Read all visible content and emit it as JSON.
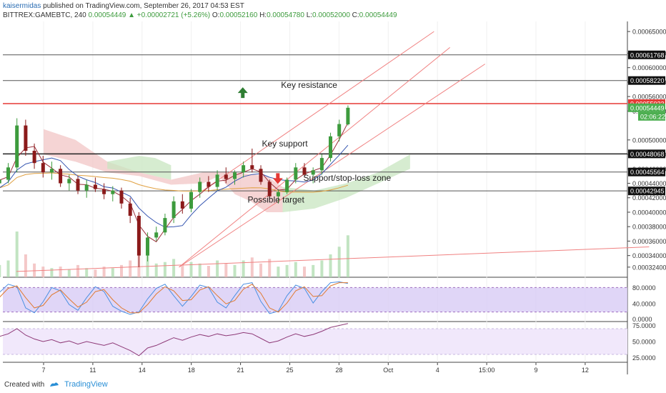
{
  "header": {
    "author": "kaisermidas",
    "published": "published on TradingView.com, September 26, 2017 04:53 EST",
    "symbol": "BITTREX:GAMEBTC, 240",
    "last": "0.00054449",
    "change": "+0.00002721 (+5.26%)",
    "o_label": "O:",
    "o": "0.00052160",
    "h_label": "H:",
    "h": "0.00054780",
    "l_label": "L:",
    "l": "0.00052000",
    "c_label": "C:",
    "c": "0.00054449"
  },
  "footer": {
    "created_with": "Created with",
    "brand": "TradingView"
  },
  "colors": {
    "up": "#3d9b3d",
    "down": "#8b1a1a",
    "resistance_line": "#e53935",
    "trend_line": "#f08080",
    "cloud_red": "#f2c6c6",
    "cloud_green": "#c8e6c0",
    "stoch_band": "#d8ccf5",
    "rsi_band": "#f1e8fb",
    "price_tag_last": "#4caf50",
    "price_tag_red": "#e53935"
  },
  "chart_data": {
    "type": "candlestick",
    "symbol": "BITTREX:GAMEBTC",
    "interval": "240",
    "y_axis_ticks": [
      "0.00065000",
      "0.00062000",
      "0.00060000",
      "0.00058000",
      "0.00056000",
      "0.00054000",
      "0.00050000",
      "0.00048000",
      "0.00046000",
      "0.00044000",
      "0.00042000",
      "0.00040000",
      "0.00038000",
      "0.00036000",
      "0.00034000",
      "0.00032400"
    ],
    "ylim": [
      0.00031,
      0.00066
    ],
    "x_axis_ticks": [
      "7",
      "11",
      "14",
      "18",
      "21",
      "25",
      "28",
      "Oct",
      "4",
      "15:00",
      "9",
      "12"
    ],
    "price_tags": [
      {
        "value": 0.00061768,
        "label": "0.00061768",
        "style": "dark"
      },
      {
        "value": 0.0005822,
        "label": "0.00058220",
        "style": "dark"
      },
      {
        "value": 0.00055023,
        "label": "0.00055023",
        "style": "red"
      },
      {
        "value": 0.00054449,
        "label": "0.00054449",
        "style": "green"
      },
      {
        "value": 0.00048068,
        "label": "0.00048068",
        "style": "dark"
      },
      {
        "value": 0.00045564,
        "label": "0.00045564",
        "style": "dark"
      },
      {
        "value": 0.00042945,
        "label": "0.00042945",
        "style": "dark"
      }
    ],
    "countdown": "02:06:22",
    "horizontal_levels": [
      {
        "value": 0.00061768,
        "color": "#555555",
        "width": 1
      },
      {
        "value": 0.0005822,
        "color": "#555555",
        "width": 1
      },
      {
        "value": 0.00055023,
        "color": "#e53935",
        "width": 1.5
      },
      {
        "value": 0.00048068,
        "color": "#222222",
        "width": 1.5
      },
      {
        "value": 0.00045564,
        "color": "#555555",
        "width": 1
      },
      {
        "value": 0.00042945,
        "color": "#555555",
        "width": 1
      }
    ],
    "annotations": [
      {
        "text": "Key resistance",
        "value": 0.000572,
        "anchor_day": 21.9
      },
      {
        "text": "Key support",
        "value": 0.000491,
        "anchor_day": 20.7
      },
      {
        "text": "Support/stop-loss zone",
        "value": 0.0004435,
        "anchor_day": 23.3
      },
      {
        "text": "Possible target",
        "value": 0.0004135,
        "anchor_day": 19.8
      }
    ],
    "arrows": [
      {
        "direction": "up",
        "color": "#2e7d32",
        "day": 19.5,
        "value": 0.000565
      },
      {
        "direction": "down",
        "color": "#e53935",
        "day": 21.7,
        "value": 0.000447
      }
    ],
    "candles": [
      {
        "t": 0,
        "o": 0.000425,
        "h": 0.000432,
        "l": 0.0004,
        "c": 0.000412
      },
      {
        "t": 1,
        "o": 0.000412,
        "h": 0.00043,
        "l": 0.000405,
        "c": 0.000422
      },
      {
        "t": 2,
        "o": 0.000422,
        "h": 0.00044,
        "l": 0.000415,
        "c": 0.000435
      },
      {
        "t": 3,
        "o": 0.000435,
        "h": 0.000455,
        "l": 0.000428,
        "c": 0.000448
      },
      {
        "t": 4,
        "o": 0.000448,
        "h": 0.00046,
        "l": 0.000436,
        "c": 0.00044
      },
      {
        "t": 5,
        "o": 0.00044,
        "h": 0.000452,
        "l": 0.00043,
        "c": 0.000445
      },
      {
        "t": 6,
        "o": 0.000445,
        "h": 0.000468,
        "l": 0.00044,
        "c": 0.000462
      },
      {
        "t": 7,
        "o": 0.000462,
        "h": 0.00053,
        "l": 0.000455,
        "c": 0.00052
      },
      {
        "t": 8,
        "o": 0.00052,
        "h": 0.000528,
        "l": 0.000478,
        "c": 0.000485
      },
      {
        "t": 9,
        "o": 0.000485,
        "h": 0.000495,
        "l": 0.00046,
        "c": 0.000468
      },
      {
        "t": 10,
        "o": 0.000468,
        "h": 0.000478,
        "l": 0.000448,
        "c": 0.000455
      },
      {
        "t": 11,
        "o": 0.000455,
        "h": 0.00047,
        "l": 0.000445,
        "c": 0.00046
      },
      {
        "t": 12,
        "o": 0.00046,
        "h": 0.000465,
        "l": 0.000435,
        "c": 0.00044
      },
      {
        "t": 13,
        "o": 0.00044,
        "h": 0.000452,
        "l": 0.00043,
        "c": 0.000446
      },
      {
        "t": 14,
        "o": 0.000446,
        "h": 0.00045,
        "l": 0.000425,
        "c": 0.00043
      },
      {
        "t": 15,
        "o": 0.00043,
        "h": 0.000445,
        "l": 0.00042,
        "c": 0.000438
      },
      {
        "t": 16,
        "o": 0.000438,
        "h": 0.000448,
        "l": 0.000428,
        "c": 0.000432
      },
      {
        "t": 17,
        "o": 0.000432,
        "h": 0.00044,
        "l": 0.000418,
        "c": 0.000425
      },
      {
        "t": 18,
        "o": 0.000425,
        "h": 0.000436,
        "l": 0.000415,
        "c": 0.00043
      },
      {
        "t": 19,
        "o": 0.00043,
        "h": 0.000434,
        "l": 0.000405,
        "c": 0.000412
      },
      {
        "t": 20,
        "o": 0.000412,
        "h": 0.00042,
        "l": 0.000385,
        "c": 0.000395
      },
      {
        "t": 21,
        "o": 0.000395,
        "h": 0.0004,
        "l": 0.000324,
        "c": 0.00034
      },
      {
        "t": 22,
        "o": 0.00034,
        "h": 0.000372,
        "l": 0.000332,
        "c": 0.000365
      },
      {
        "t": 23,
        "o": 0.000365,
        "h": 0.00038,
        "l": 0.00036,
        "c": 0.000372
      },
      {
        "t": 24,
        "o": 0.000372,
        "h": 0.000398,
        "l": 0.000368,
        "c": 0.000392
      },
      {
        "t": 25,
        "o": 0.000392,
        "h": 0.000422,
        "l": 0.000385,
        "c": 0.000415
      },
      {
        "t": 26,
        "o": 0.000415,
        "h": 0.000425,
        "l": 0.000398,
        "c": 0.000405
      },
      {
        "t": 27,
        "o": 0.000405,
        "h": 0.000432,
        "l": 0.0004,
        "c": 0.000428
      },
      {
        "t": 28,
        "o": 0.000428,
        "h": 0.000448,
        "l": 0.00042,
        "c": 0.000442
      },
      {
        "t": 29,
        "o": 0.000442,
        "h": 0.00045,
        "l": 0.000428,
        "c": 0.000435
      },
      {
        "t": 30,
        "o": 0.000435,
        "h": 0.000458,
        "l": 0.00043,
        "c": 0.000452
      },
      {
        "t": 31,
        "o": 0.000452,
        "h": 0.000462,
        "l": 0.00044,
        "c": 0.000446
      },
      {
        "t": 32,
        "o": 0.000446,
        "h": 0.000458,
        "l": 0.000438,
        "c": 0.000455
      },
      {
        "t": 33,
        "o": 0.000455,
        "h": 0.00047,
        "l": 0.000448,
        "c": 0.000465
      },
      {
        "t": 34,
        "o": 0.000465,
        "h": 0.000488,
        "l": 0.000455,
        "c": 0.00046
      },
      {
        "t": 35,
        "o": 0.00046,
        "h": 0.000465,
        "l": 0.000438,
        "c": 0.000442
      },
      {
        "t": 36,
        "o": 0.000442,
        "h": 0.000445,
        "l": 0.000418,
        "c": 0.000422
      },
      {
        "t": 37,
        "o": 0.000422,
        "h": 0.000432,
        "l": 0.000412,
        "c": 0.000428
      },
      {
        "t": 38,
        "o": 0.000428,
        "h": 0.000448,
        "l": 0.000425,
        "c": 0.000445
      },
      {
        "t": 39,
        "o": 0.000445,
        "h": 0.000468,
        "l": 0.00044,
        "c": 0.000462
      },
      {
        "t": 40,
        "o": 0.000462,
        "h": 0.000468,
        "l": 0.000448,
        "c": 0.000452
      },
      {
        "t": 41,
        "o": 0.000452,
        "h": 0.000462,
        "l": 0.00044,
        "c": 0.000458
      },
      {
        "t": 42,
        "o": 0.000458,
        "h": 0.00048,
        "l": 0.000452,
        "c": 0.000475
      },
      {
        "t": 43,
        "o": 0.000475,
        "h": 0.00051,
        "l": 0.00047,
        "c": 0.000505
      },
      {
        "t": 44,
        "o": 0.000505,
        "h": 0.000528,
        "l": 0.000498,
        "c": 0.000522
      },
      {
        "t": 45,
        "o": 0.0005216,
        "h": 0.0005478,
        "l": 0.00052,
        "c": 0.00054449
      }
    ],
    "stoch_rsi": {
      "levels": [
        80,
        20
      ],
      "y_axis_ticks": [
        "80.0000",
        "40.0000",
        "0.0000"
      ],
      "ylim": [
        0,
        100
      ],
      "k": [
        70,
        85,
        62,
        35,
        40,
        68,
        88,
        82,
        30,
        18,
        45,
        80,
        72,
        38,
        24,
        55,
        82,
        70,
        34,
        22,
        14,
        20,
        52,
        78,
        88,
        60,
        34,
        58,
        86,
        80,
        44,
        30,
        60,
        88,
        92,
        46,
        16,
        22,
        60,
        86,
        78,
        42,
        70,
        92,
        94,
        90
      ],
      "d": [
        64,
        76,
        70,
        50,
        42,
        56,
        78,
        84,
        55,
        30,
        36,
        62,
        74,
        52,
        32,
        44,
        70,
        75,
        50,
        30,
        18,
        18,
        38,
        64,
        82,
        72,
        48,
        50,
        74,
        82,
        60,
        40,
        48,
        76,
        88,
        66,
        30,
        20,
        42,
        72,
        82,
        58,
        60,
        84,
        92,
        92
      ]
    },
    "rsi": {
      "y_axis_ticks": [
        "75.0000",
        "50.0000",
        "25.0000"
      ],
      "ylim": [
        20,
        80
      ],
      "band": [
        30,
        70
      ],
      "values": [
        44,
        50,
        54,
        60,
        56,
        58,
        62,
        70,
        60,
        54,
        50,
        53,
        48,
        51,
        46,
        50,
        47,
        44,
        48,
        42,
        36,
        28,
        40,
        44,
        50,
        56,
        52,
        57,
        61,
        58,
        62,
        59,
        61,
        64,
        62,
        55,
        48,
        51,
        57,
        62,
        58,
        61,
        66,
        72,
        75,
        78
      ]
    },
    "volume": [
      20,
      15,
      18,
      25,
      14,
      16,
      22,
      60,
      30,
      18,
      14,
      12,
      14,
      10,
      16,
      12,
      10,
      14,
      12,
      16,
      22,
      75,
      28,
      18,
      20,
      24,
      16,
      20,
      18,
      15,
      22,
      18,
      16,
      22,
      26,
      18,
      24,
      14,
      16,
      20,
      14,
      16,
      22,
      30,
      40,
      55
    ]
  }
}
